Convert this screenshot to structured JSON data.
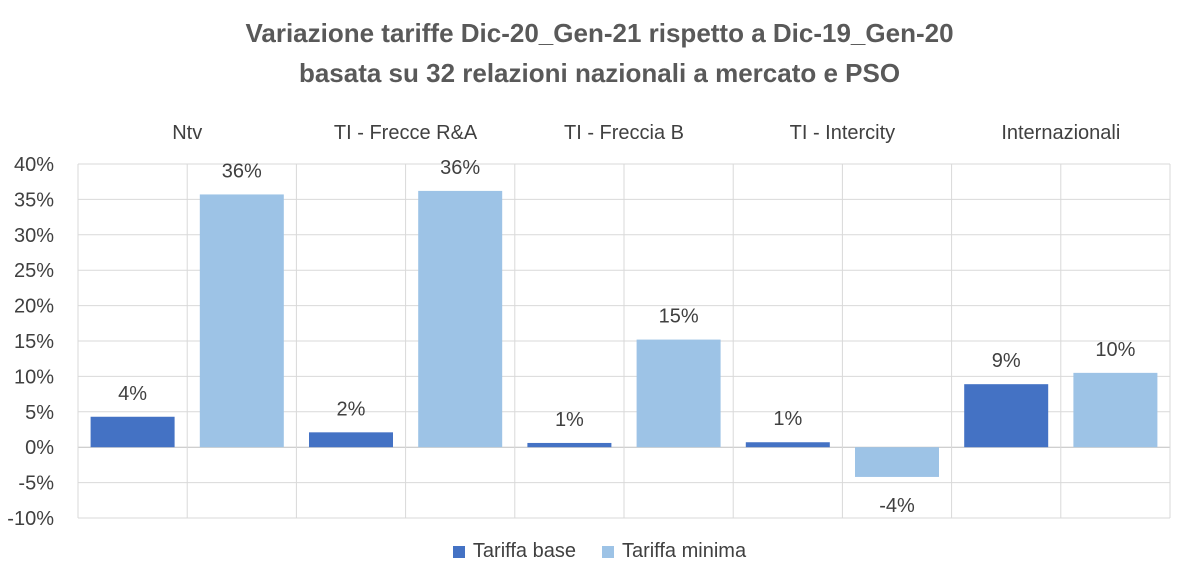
{
  "chart_data": {
    "type": "bar",
    "title": "Variazione tariffe Dic-20_Gen-21 rispetto a Dic-19_Gen-20",
    "subtitle": "basata su 32 relazioni nazionali a mercato e PSO",
    "categories": [
      "Ntv",
      "TI - Frecce R&A",
      "TI - Freccia B",
      "TI - Intercity",
      "Internazionali"
    ],
    "series": [
      {
        "name": "Tariffa base",
        "color": "#4472C4",
        "values": [
          0.043,
          0.021,
          0.006,
          0.007,
          0.089
        ],
        "labels": [
          "4%",
          "2%",
          "1%",
          "1%",
          "9%"
        ]
      },
      {
        "name": "Tariffa minima",
        "color": "#9DC3E6",
        "values": [
          0.357,
          0.362,
          0.152,
          -0.042,
          0.105
        ],
        "labels": [
          "36%",
          "36%",
          "15%",
          "-4%",
          "10%"
        ]
      }
    ],
    "ylim": [
      -0.1,
      0.4
    ],
    "yticks": [
      0.4,
      0.35,
      0.3,
      0.25,
      0.2,
      0.15,
      0.1,
      0.05,
      0.0,
      -0.05,
      -0.1
    ],
    "ytick_labels": [
      "40%",
      "35%",
      "30%",
      "25%",
      "20%",
      "15%",
      "10%",
      "5%",
      "0%",
      "-5%",
      "-10%"
    ],
    "category_labels_position": "top",
    "grid": true,
    "legend_position": "bottom"
  }
}
